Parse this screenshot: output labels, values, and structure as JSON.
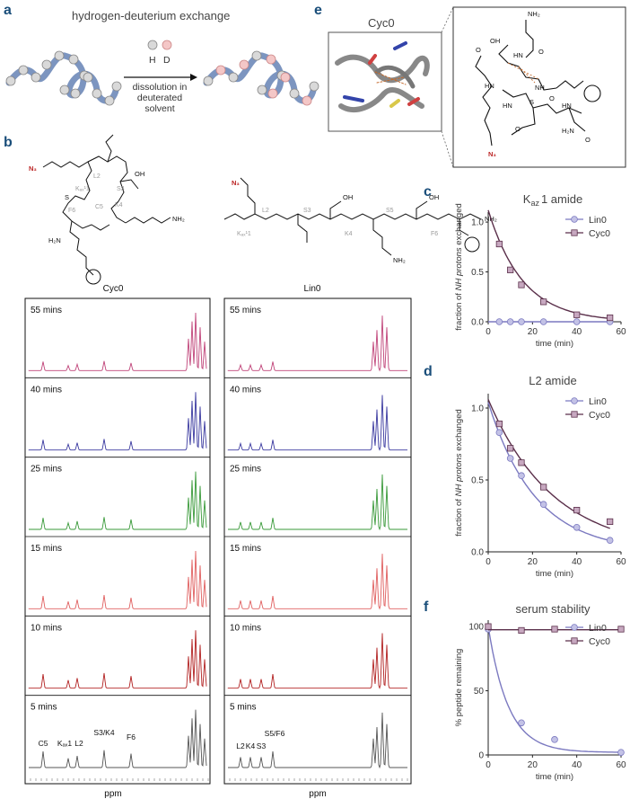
{
  "panels": {
    "a": {
      "label": "a",
      "title": "hydrogen-deuterium exchange",
      "legend_h": "H",
      "legend_d": "D",
      "arrow_text": [
        "dissolution in",
        "deuterated",
        "solvent"
      ]
    },
    "b": {
      "label": "b",
      "cyc_name": "Cyc0",
      "lin_name": "Lin0",
      "time_labels": [
        "55 mins",
        "40 mins",
        "25 mins",
        "15 mins",
        "10 mins",
        "5 mins"
      ],
      "cyc_peaks": [
        "C5",
        "Kₐₓ",
        "L2",
        "S3/K4",
        "F6"
      ],
      "lin_peaks": [
        "L2",
        "K4",
        "S3",
        "S5/F6"
      ],
      "xaxis": "ppm",
      "molecule_labels": {
        "cyc": [
          "N₃",
          "L2",
          "Kₐₓ¹1",
          "S3",
          "C5",
          "K4",
          "F6",
          "OH",
          "NH₂",
          "H₂N",
          "S"
        ],
        "lin": [
          "N₃",
          "L2",
          "S3",
          "S5",
          "K4",
          "F6",
          "Kₐₓ¹1",
          "OH",
          "OH",
          "NH₂",
          "NH₂"
        ]
      }
    },
    "c": {
      "label": "c",
      "title": "Kₐₓ 1 amide",
      "title_main": "K",
      "title_sub": "az",
      "title_rest": "1 amide"
    },
    "d": {
      "label": "d",
      "title": "L2 amide"
    },
    "e": {
      "label": "e",
      "struct_title": "Cyc0",
      "molecule_labels": [
        "NH₂",
        "OH",
        "HN",
        "O",
        "HN",
        "NH",
        "O",
        "S",
        "HN",
        "O",
        "H₂N",
        "O",
        "N₃",
        "O",
        "HN"
      ]
    },
    "f": {
      "label": "f",
      "title": "serum stability"
    }
  },
  "colors": {
    "lin0": "#7b79c0",
    "lin0_fill": "#c3c2e6",
    "cyc0": "#5a2f4a",
    "cyc0_fill": "#c7a8c0",
    "panel_label": "#1a4e7a",
    "spectra": [
      "#c0457a",
      "#3b3aa0",
      "#3a9a3a",
      "#e06060",
      "#b22222",
      "#555555"
    ]
  },
  "chart_data": [
    {
      "type": "scatter",
      "title": "K az 1 amide",
      "xlabel": "time (min)",
      "ylabel": "fraction of NH protons exchanged",
      "xlim": [
        0,
        60
      ],
      "ylim": [
        0,
        1.1
      ],
      "xticks": [
        0,
        20,
        40,
        60
      ],
      "yticks": [
        0.0,
        0.5,
        1.0
      ],
      "legend": "top-right",
      "series": [
        {
          "name": "Lin0",
          "x": [
            5,
            10,
            15,
            25,
            40,
            55
          ],
          "y": [
            0,
            0,
            0,
            0,
            0,
            0
          ]
        },
        {
          "name": "Cyc0",
          "x": [
            5,
            10,
            15,
            25,
            40,
            55
          ],
          "y": [
            0.78,
            0.52,
            0.37,
            0.2,
            0.07,
            0.04
          ]
        }
      ]
    },
    {
      "type": "scatter",
      "title": "L2 amide",
      "xlabel": "time (min)",
      "ylabel": "fraction of NH protons exchanged",
      "xlim": [
        0,
        60
      ],
      "ylim": [
        0,
        1.1
      ],
      "xticks": [
        0,
        20,
        40,
        60
      ],
      "yticks": [
        0.0,
        0.5,
        1.0
      ],
      "legend": "top-right",
      "series": [
        {
          "name": "Lin0",
          "x": [
            5,
            10,
            15,
            25,
            40,
            55
          ],
          "y": [
            0.83,
            0.65,
            0.53,
            0.33,
            0.17,
            0.08
          ]
        },
        {
          "name": "Cyc0",
          "x": [
            5,
            10,
            15,
            25,
            40,
            55
          ],
          "y": [
            0.89,
            0.72,
            0.62,
            0.45,
            0.29,
            0.21
          ]
        }
      ]
    },
    {
      "type": "scatter",
      "title": "serum stability",
      "xlabel": "time (min)",
      "ylabel": "% peptide remaining",
      "xlim": [
        0,
        60
      ],
      "ylim": [
        0,
        105
      ],
      "xticks": [
        0,
        20,
        40,
        60
      ],
      "yticks": [
        0,
        50,
        100
      ],
      "legend": "top-right",
      "series": [
        {
          "name": "Lin0",
          "x": [
            0,
            15,
            30,
            60
          ],
          "y": [
            98,
            25,
            12,
            2
          ]
        },
        {
          "name": "Cyc0",
          "x": [
            0,
            15,
            30,
            60
          ],
          "y": [
            100,
            97,
            98,
            98
          ]
        }
      ]
    }
  ]
}
